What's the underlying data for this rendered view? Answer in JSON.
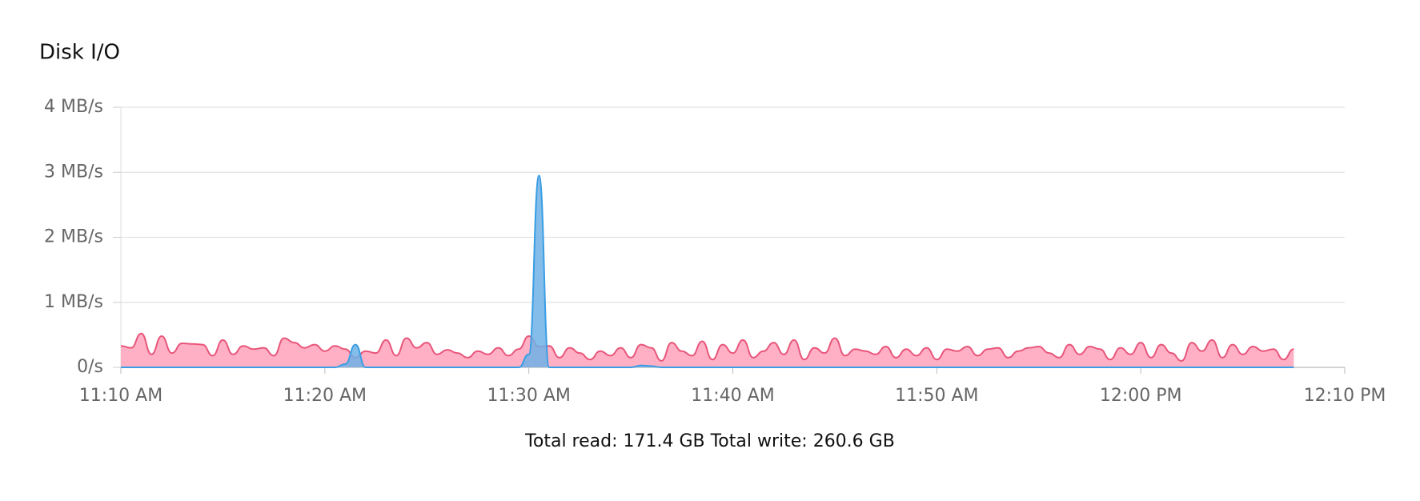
{
  "chart_data": {
    "type": "area",
    "title": "Disk I/O",
    "annotation": "Total read: 171.4 GB Total write: 260.6 GB",
    "x": [
      0,
      0.5,
      1,
      1.5,
      2,
      2.5,
      3,
      3.5,
      4,
      4.5,
      5,
      5.5,
      6,
      6.5,
      7,
      7.5,
      8,
      8.5,
      9,
      9.5,
      10,
      10.5,
      11,
      11.5,
      12,
      12.5,
      13,
      13.5,
      14,
      14.5,
      15,
      15.5,
      16,
      16.5,
      17,
      17.5,
      18,
      18.5,
      19,
      19.5,
      20,
      20.5,
      21,
      21.5,
      22,
      22.5,
      23,
      23.5,
      24,
      24.5,
      25,
      25.5,
      26,
      26.5,
      27,
      27.5,
      28,
      28.5,
      29,
      29.5,
      30,
      30.5,
      31,
      31.5,
      32,
      32.5,
      33,
      33.5,
      34,
      34.5,
      35,
      35.5,
      36,
      36.5,
      37,
      37.5,
      38,
      38.5,
      39,
      39.5,
      40,
      40.5,
      41,
      41.5,
      42,
      42.5,
      43,
      43.5,
      44,
      44.5,
      45,
      45.5,
      46,
      46.5,
      47,
      47.5,
      48,
      48.5,
      49,
      49.5,
      50,
      50.5,
      51,
      51.5,
      52,
      52.5,
      53,
      53.5,
      54,
      54.5,
      55,
      55.5,
      56,
      56.5,
      57,
      57.5
    ],
    "series": [
      {
        "color": "#e8557a",
        "fill": "#ffb0c4",
        "values": [
          0.33,
          0.3,
          0.52,
          0.2,
          0.48,
          0.22,
          0.37,
          0.36,
          0.35,
          0.18,
          0.42,
          0.2,
          0.33,
          0.28,
          0.3,
          0.18,
          0.45,
          0.38,
          0.3,
          0.35,
          0.25,
          0.33,
          0.28,
          0.15,
          0.25,
          0.22,
          0.42,
          0.18,
          0.45,
          0.3,
          0.38,
          0.2,
          0.27,
          0.22,
          0.15,
          0.25,
          0.2,
          0.3,
          0.18,
          0.28,
          0.48,
          0.32,
          0.33,
          0.15,
          0.3,
          0.22,
          0.12,
          0.25,
          0.18,
          0.3,
          0.15,
          0.35,
          0.3,
          0.1,
          0.38,
          0.25,
          0.18,
          0.4,
          0.12,
          0.35,
          0.22,
          0.42,
          0.15,
          0.25,
          0.38,
          0.2,
          0.42,
          0.12,
          0.3,
          0.22,
          0.45,
          0.18,
          0.28,
          0.25,
          0.2,
          0.32,
          0.15,
          0.28,
          0.18,
          0.3,
          0.12,
          0.28,
          0.25,
          0.32,
          0.18,
          0.28,
          0.3,
          0.15,
          0.25,
          0.3,
          0.32,
          0.22,
          0.15,
          0.35,
          0.2,
          0.32,
          0.28,
          0.12,
          0.3,
          0.2,
          0.38,
          0.15,
          0.35,
          0.22,
          0.1,
          0.38,
          0.25,
          0.42,
          0.15,
          0.35,
          0.2,
          0.32,
          0.25,
          0.28,
          0.12,
          0.28
        ]
      },
      {
        "color": "#3a9ee4",
        "fill": "#6fb2e6",
        "values": [
          0,
          0,
          0,
          0,
          0,
          0,
          0,
          0,
          0,
          0,
          0,
          0,
          0,
          0,
          0,
          0,
          0,
          0,
          0,
          0,
          0,
          0,
          0.05,
          0.35,
          0,
          0,
          0,
          0,
          0,
          0,
          0,
          0,
          0,
          0,
          0,
          0,
          0,
          0,
          0,
          0,
          0.2,
          2.95,
          0,
          0,
          0,
          0,
          0,
          0,
          0,
          0,
          0,
          0.03,
          0.02,
          0,
          0,
          0,
          0,
          0,
          0,
          0,
          0,
          0,
          0,
          0,
          0,
          0,
          0,
          0,
          0,
          0,
          0,
          0,
          0,
          0,
          0,
          0,
          0,
          0,
          0,
          0,
          0,
          0,
          0,
          0,
          0,
          0,
          0,
          0,
          0,
          0,
          0,
          0,
          0,
          0,
          0,
          0,
          0,
          0,
          0,
          0,
          0,
          0,
          0,
          0,
          0,
          0,
          0,
          0,
          0,
          0,
          0,
          0,
          0,
          0,
          0,
          0
        ]
      }
    ],
    "xlim": [
      0,
      60
    ],
    "xticks": [
      {
        "value": 0,
        "label": "11:10 AM"
      },
      {
        "value": 10,
        "label": "11:20 AM"
      },
      {
        "value": 20,
        "label": "11:30 AM"
      },
      {
        "value": 30,
        "label": "11:40 AM"
      },
      {
        "value": 40,
        "label": "11:50 AM"
      },
      {
        "value": 50,
        "label": "12:00 PM"
      },
      {
        "value": 60,
        "label": "12:10 PM"
      }
    ],
    "ylim": [
      0,
      4
    ],
    "yticks": [
      {
        "value": 0,
        "label": "0/s"
      },
      {
        "value": 1,
        "label": "1 MB/s"
      },
      {
        "value": 2,
        "label": "2 MB/s"
      },
      {
        "value": 3,
        "label": "3 MB/s"
      },
      {
        "value": 4,
        "label": "4 MB/s"
      }
    ],
    "grid": true
  }
}
